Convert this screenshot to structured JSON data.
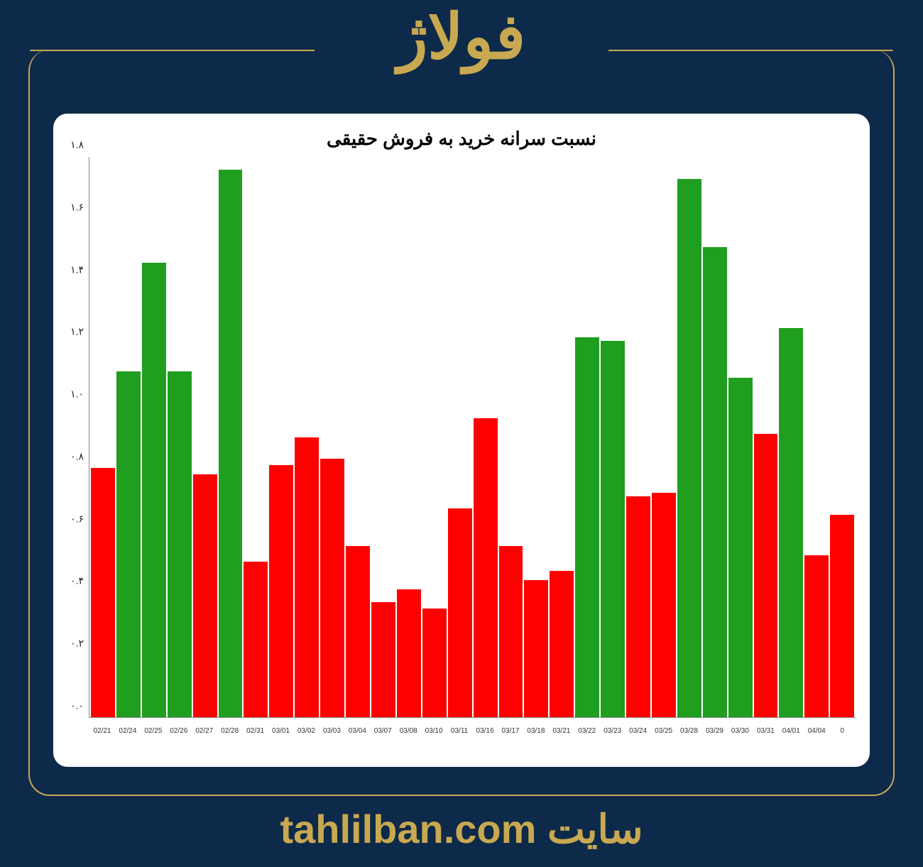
{
  "header": {
    "stock_name": "فولاژ"
  },
  "footer": {
    "prefix": "سایت",
    "site": "tahlilban.com"
  },
  "colors": {
    "page_bg": "#0e2a4a",
    "accent": "#c8a951",
    "card_bg": "#ffffff",
    "green": "#1f9e1f",
    "red": "#ff0000",
    "axis": "#888888"
  },
  "chart": {
    "type": "bar",
    "title": "نسبت سرانه خرید به فروش حقیقی",
    "title_fontsize": 26,
    "ylim": [
      0.0,
      1.8
    ],
    "ytick_step": 0.2,
    "ytick_labels": [
      "۰.۰",
      "۰.۲",
      "۰.۴",
      "۰.۶",
      "۰.۸",
      "۱.۰",
      "۱.۲",
      "۱.۴",
      "۱.۶",
      "۱.۸"
    ],
    "label_fontsize": 14,
    "xlabel_fontsize": 10,
    "bar_width": 0.95,
    "background_color": "#ffffff",
    "categories": [
      "02/21",
      "02/24",
      "02/25",
      "02/26",
      "02/27",
      "02/28",
      "02/31",
      "03/01",
      "03/02",
      "03/03",
      "03/04",
      "03/07",
      "03/08",
      "03/10",
      "03/11",
      "03/16",
      "03/17",
      "03/18",
      "03/21",
      "03/22",
      "03/23",
      "03/24",
      "03/25",
      "03/28",
      "03/29",
      "03/30",
      "03/31",
      "04/01",
      "04/04",
      "0"
    ],
    "values": [
      0.8,
      1.11,
      1.46,
      1.11,
      0.78,
      1.76,
      0.5,
      0.81,
      0.9,
      0.83,
      0.55,
      0.37,
      0.41,
      0.35,
      0.67,
      0.96,
      0.55,
      0.44,
      0.47,
      1.22,
      1.21,
      0.71,
      0.72,
      1.73,
      1.51,
      1.09,
      0.91,
      1.25,
      0.52,
      0.65
    ],
    "bar_colors": [
      "#ff0000",
      "#1f9e1f",
      "#1f9e1f",
      "#1f9e1f",
      "#ff0000",
      "#1f9e1f",
      "#ff0000",
      "#ff0000",
      "#ff0000",
      "#ff0000",
      "#ff0000",
      "#ff0000",
      "#ff0000",
      "#ff0000",
      "#ff0000",
      "#ff0000",
      "#ff0000",
      "#ff0000",
      "#ff0000",
      "#1f9e1f",
      "#1f9e1f",
      "#ff0000",
      "#ff0000",
      "#1f9e1f",
      "#1f9e1f",
      "#1f9e1f",
      "#ff0000",
      "#1f9e1f",
      "#ff0000",
      "#ff0000"
    ]
  }
}
